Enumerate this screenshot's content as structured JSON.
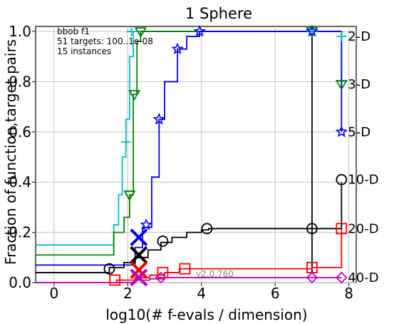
{
  "chart_data": {
    "type": "line",
    "title": "1 Sphere",
    "xlabel": "log10(# f-evals / dimension)",
    "ylabel": "Fraction of function,target pairs",
    "xlim": [
      -0.5,
      8.2
    ],
    "ylim": [
      0,
      1.02
    ],
    "xticks": [
      "0",
      "2",
      "4",
      "6",
      "8"
    ],
    "yticks": [
      "0.0",
      "0.2",
      "0.4",
      "0.6",
      "0.8",
      "1.0"
    ],
    "grid": true,
    "info_lines": [
      "bbob f1",
      "51 targets: 100..1e-08",
      "15 instances"
    ],
    "version": "v2.0.760",
    "series": [
      {
        "name": "2-D",
        "color": "#00bfbf",
        "marker": "plus",
        "steps": [
          [
            -0.5,
            0.15
          ],
          [
            1.6,
            0.15
          ],
          [
            1.62,
            0.23
          ],
          [
            1.75,
            0.35
          ],
          [
            1.85,
            0.5
          ],
          [
            1.95,
            0.65
          ],
          [
            2.05,
            0.9
          ],
          [
            2.15,
            1.0
          ],
          [
            7.0,
            1.0
          ],
          [
            7.8,
            0.98
          ]
        ],
        "markers": [
          [
            1.95,
            0.56
          ],
          [
            2.1,
            1.0
          ],
          [
            7.0,
            1.0
          ],
          [
            7.8,
            0.98
          ]
        ],
        "cross": null
      },
      {
        "name": "3-D",
        "color": "#008000",
        "marker": "triangle-down",
        "steps": [
          [
            -0.5,
            0.11
          ],
          [
            1.6,
            0.11
          ],
          [
            1.62,
            0.2
          ],
          [
            1.9,
            0.26
          ],
          [
            2.05,
            0.35
          ],
          [
            2.15,
            0.75
          ],
          [
            2.25,
            0.96
          ],
          [
            2.35,
            1.0
          ],
          [
            7.0,
            1.0
          ],
          [
            7.8,
            0.79
          ]
        ],
        "markers": [
          [
            2.05,
            0.35
          ],
          [
            2.18,
            0.75
          ],
          [
            2.35,
            1.0
          ],
          [
            7.0,
            1.0
          ],
          [
            7.8,
            0.79
          ]
        ],
        "cross": null
      },
      {
        "name": "5-D",
        "color": "#0000ff",
        "marker": "star",
        "steps": [
          [
            -0.5,
            0.07
          ],
          [
            2.0,
            0.07
          ],
          [
            2.2,
            0.14
          ],
          [
            2.4,
            0.22
          ],
          [
            2.65,
            0.42
          ],
          [
            2.85,
            0.65
          ],
          [
            3.0,
            0.8
          ],
          [
            3.35,
            0.93
          ],
          [
            3.6,
            0.98
          ],
          [
            3.95,
            1.0
          ],
          [
            7.0,
            1.0
          ],
          [
            7.8,
            0.6
          ]
        ],
        "markers": [
          [
            2.5,
            0.23
          ],
          [
            2.85,
            0.65
          ],
          [
            3.35,
            0.93
          ],
          [
            3.95,
            1.0
          ],
          [
            7.0,
            1.0
          ],
          [
            7.8,
            0.6
          ]
        ],
        "cross": [
          2.3,
          0.18
        ]
      },
      {
        "name": "10-D",
        "color": "#000000",
        "marker": "circle",
        "steps": [
          [
            -0.5,
            0.04
          ],
          [
            1.4,
            0.04
          ],
          [
            1.5,
            0.06
          ],
          [
            1.9,
            0.08
          ],
          [
            2.2,
            0.1
          ],
          [
            2.55,
            0.13
          ],
          [
            2.9,
            0.16
          ],
          [
            3.2,
            0.18
          ],
          [
            3.6,
            0.2
          ],
          [
            4.0,
            0.21
          ],
          [
            4.2,
            0.215
          ],
          [
            6.95,
            0.215
          ],
          [
            7.0,
            0.04
          ],
          [
            7.0,
            1.0
          ],
          [
            7.0,
            0.215
          ],
          [
            7.8,
            0.4
          ]
        ],
        "markers": [
          [
            1.5,
            0.055
          ],
          [
            2.95,
            0.165
          ],
          [
            4.15,
            0.215
          ],
          [
            7.0,
            0.215
          ],
          [
            7.8,
            0.41
          ]
        ],
        "cross": [
          2.3,
          0.11
        ]
      },
      {
        "name": "20-D",
        "color": "#ff0000",
        "marker": "square",
        "steps": [
          [
            -0.5,
            0.0
          ],
          [
            1.6,
            0.0
          ],
          [
            1.7,
            0.01
          ],
          [
            2.2,
            0.02
          ],
          [
            2.6,
            0.03
          ],
          [
            3.0,
            0.04
          ],
          [
            3.4,
            0.055
          ],
          [
            3.6,
            0.055
          ],
          [
            7.0,
            0.06
          ],
          [
            7.8,
            0.215
          ]
        ],
        "markers": [
          [
            1.65,
            0.01
          ],
          [
            2.95,
            0.04
          ],
          [
            3.55,
            0.055
          ],
          [
            7.0,
            0.06
          ],
          [
            7.8,
            0.215
          ]
        ],
        "cross": [
          2.3,
          0.05
        ]
      },
      {
        "name": "40-D",
        "color": "#bf00bf",
        "marker": "diamond",
        "steps": [
          [
            -0.5,
            0.0
          ],
          [
            2.0,
            0.0
          ],
          [
            2.2,
            0.01
          ],
          [
            2.6,
            0.015
          ],
          [
            3.0,
            0.02
          ],
          [
            7.0,
            0.02
          ],
          [
            7.8,
            0.02
          ]
        ],
        "markers": [
          [
            2.9,
            0.02
          ],
          [
            7.0,
            0.02
          ],
          [
            7.8,
            0.02
          ]
        ],
        "cross": [
          2.3,
          0.02
        ]
      }
    ]
  }
}
